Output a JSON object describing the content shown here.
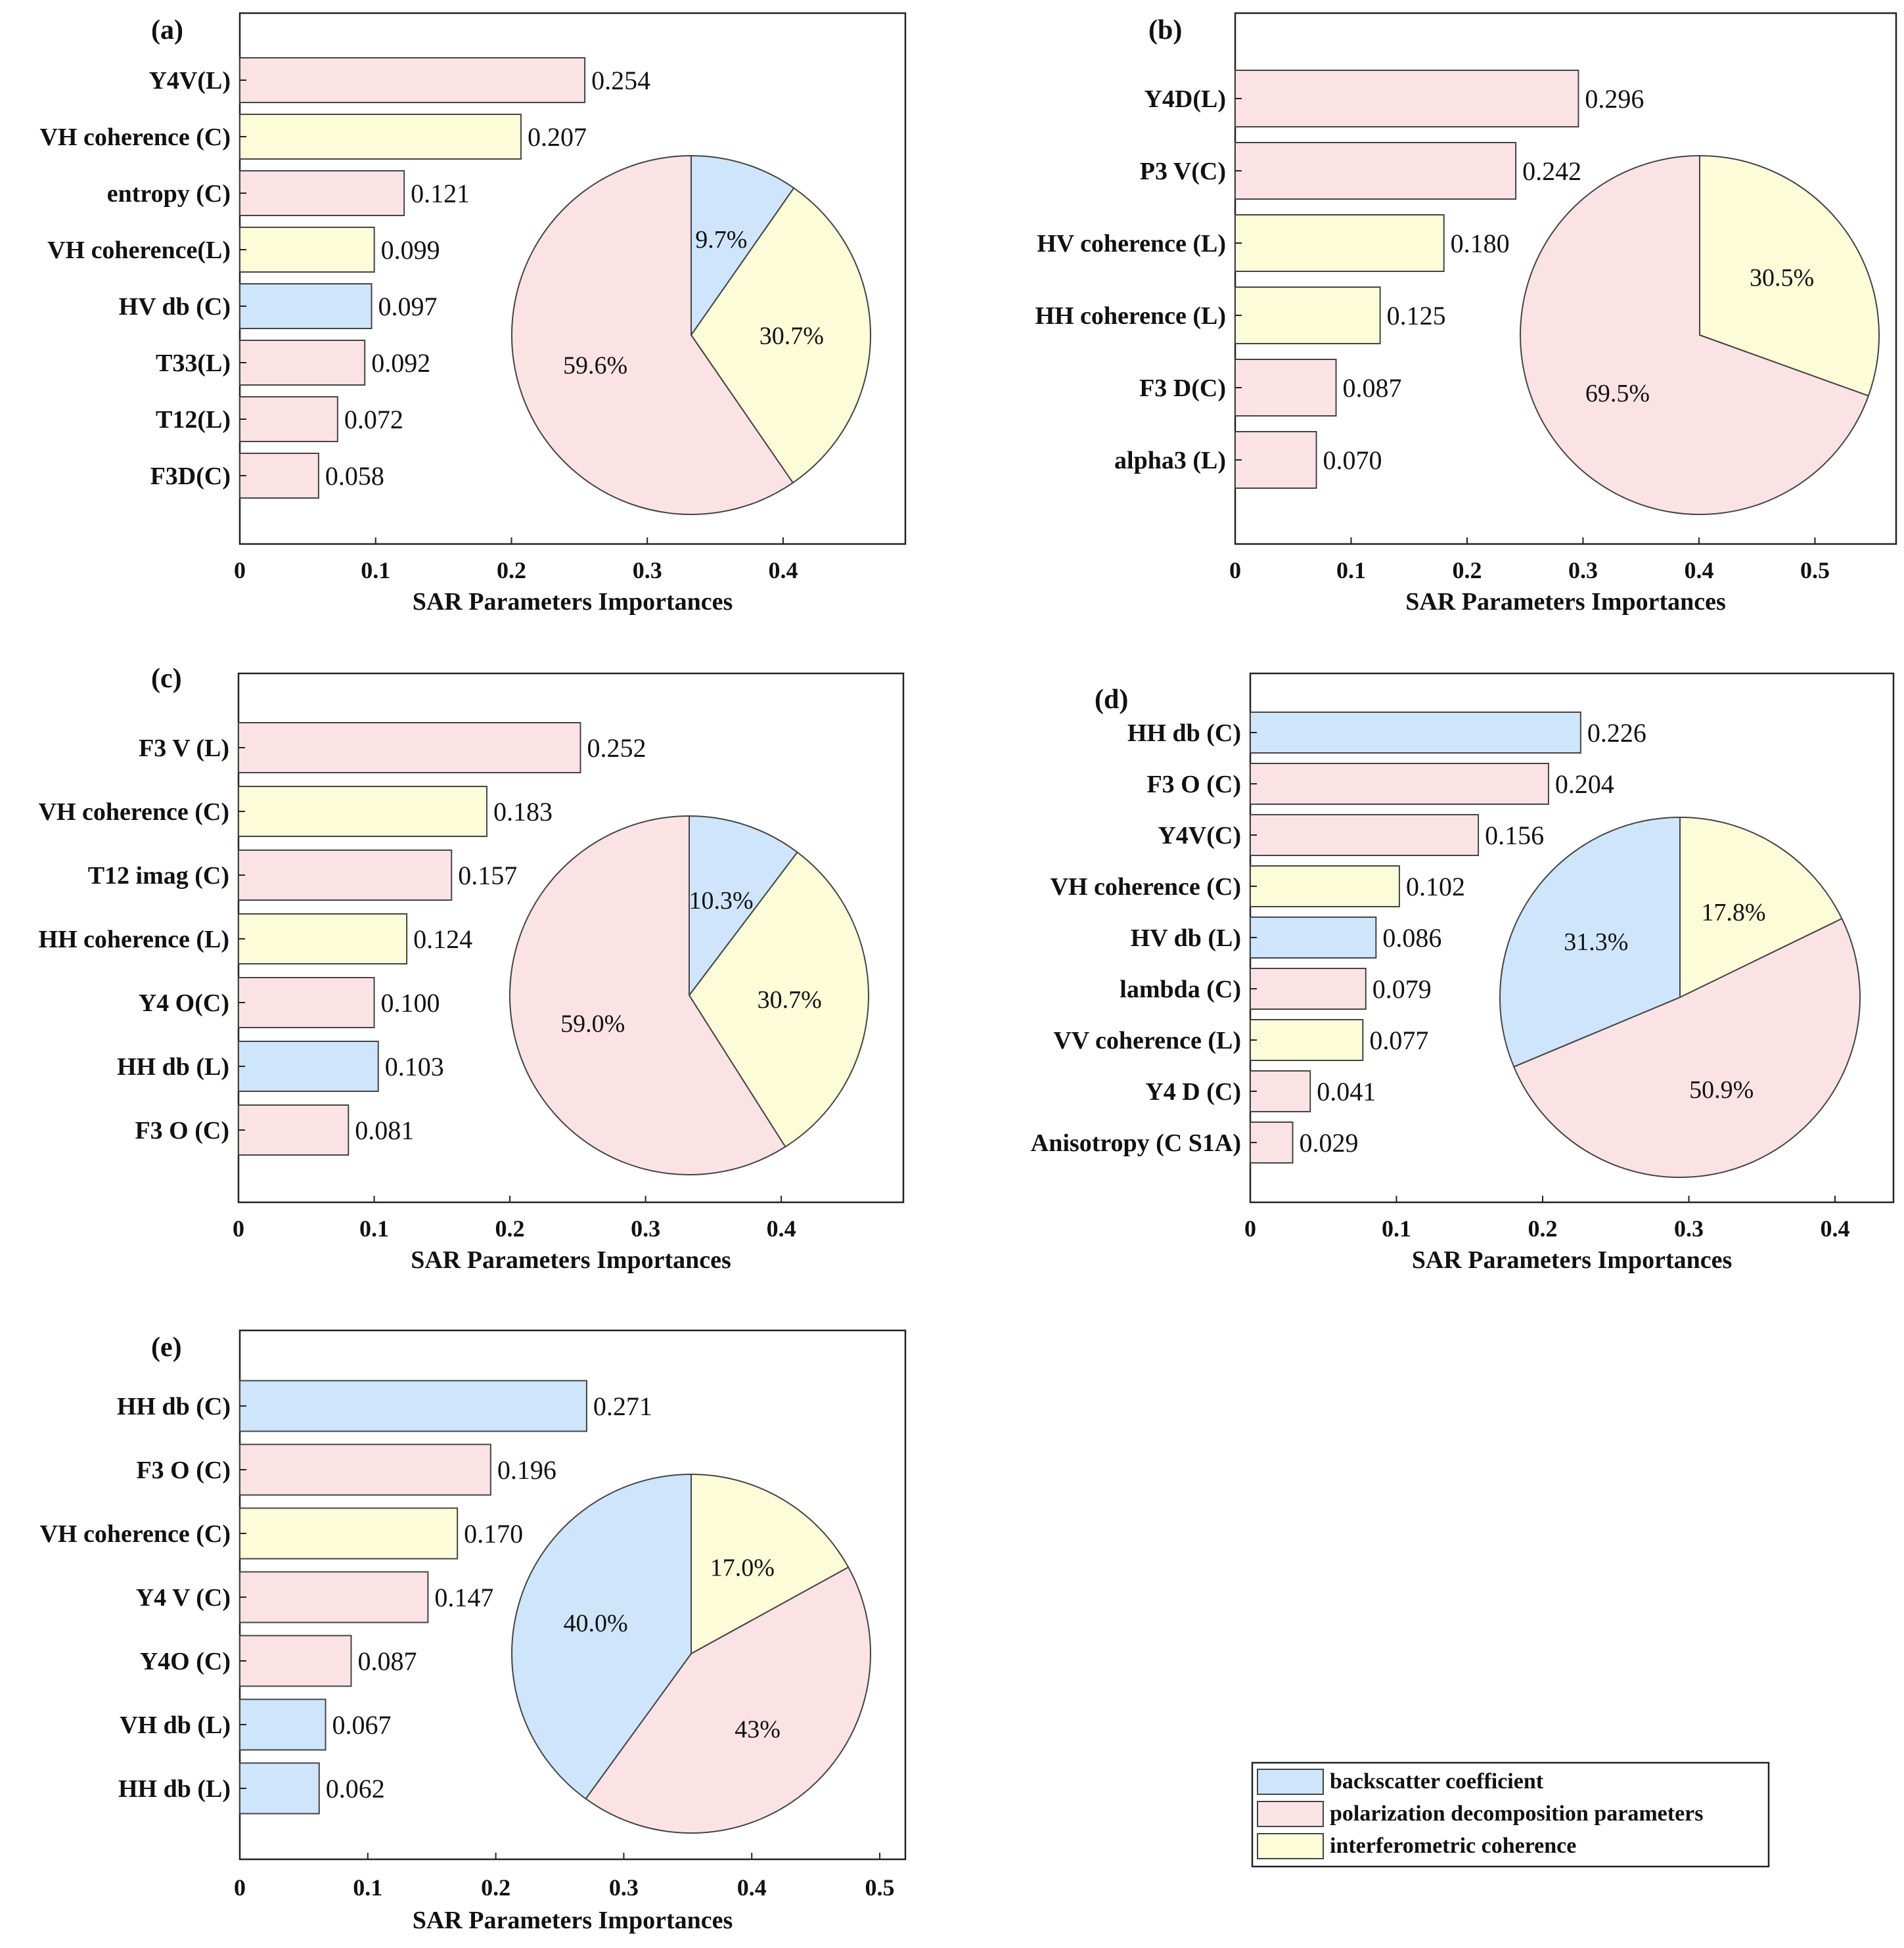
{
  "colors": {
    "backscatter coefficient": "#cfe5fb",
    "polarization decomposition parameters": "#fbe3e5",
    "interferometric coherence": "#fcfcd9",
    "stroke": "#444444"
  },
  "legend": {
    "items": [
      {
        "label": "backscatter coefficient",
        "color": "#cfe5fb"
      },
      {
        "label": "polarization decomposition parameters",
        "color": "#fbe3e5"
      },
      {
        "label": "interferometric coherence",
        "color": "#fcfcd9"
      }
    ]
  },
  "chart_data": [
    {
      "panel": "(a)",
      "type": "bar",
      "orientation": "horizontal",
      "xlabel": "SAR Parameters Importances",
      "xlim": [
        0,
        0.49
      ],
      "xticks": [
        0,
        0.1,
        0.2,
        0.3,
        0.4
      ],
      "xtick_labels": [
        "0",
        "0.1",
        "0.2",
        "0.3",
        "0.4"
      ],
      "bars": [
        {
          "label": "Y4V(L)",
          "value": 0.254,
          "value_label": "0.254",
          "group": "polarization decomposition parameters"
        },
        {
          "label": "VH coherence (C)",
          "value": 0.207,
          "value_label": "0.207",
          "group": "interferometric coherence"
        },
        {
          "label": "entropy (C)",
          "value": 0.121,
          "value_label": "0.121",
          "group": "polarization decomposition parameters"
        },
        {
          "label": "VH  coherence(L)",
          "value": 0.099,
          "value_label": "0.099",
          "group": "interferometric coherence"
        },
        {
          "label": "HV db (C)",
          "value": 0.097,
          "value_label": "0.097",
          "group": "backscatter coefficient"
        },
        {
          "label": "T33(L)",
          "value": 0.092,
          "value_label": "0.092",
          "group": "polarization decomposition parameters"
        },
        {
          "label": "T12(L)",
          "value": 0.072,
          "value_label": "0.072",
          "group": "polarization decomposition parameters"
        },
        {
          "label": "F3D(C)",
          "value": 0.058,
          "value_label": "0.058",
          "group": "polarization decomposition parameters"
        }
      ],
      "pie": [
        {
          "label": "9.7%",
          "value": 9.7,
          "group": "backscatter coefficient"
        },
        {
          "label": "30.7%",
          "value": 30.7,
          "group": "interferometric coherence"
        },
        {
          "label": "59.6%",
          "value": 59.6,
          "group": "polarization decomposition parameters"
        }
      ]
    },
    {
      "panel": "(b)",
      "type": "bar",
      "orientation": "horizontal",
      "xlabel": "SAR Parameters Importances",
      "xlim": [
        0,
        0.57
      ],
      "xticks": [
        0,
        0.1,
        0.2,
        0.3,
        0.4,
        0.5
      ],
      "xtick_labels": [
        "0",
        "0.1",
        "0.2",
        "0.3",
        "0.4",
        "0.5"
      ],
      "bars": [
        {
          "label": "Y4D(L)",
          "value": 0.296,
          "value_label": "0.296",
          "group": "polarization decomposition parameters"
        },
        {
          "label": "P3 V(C)",
          "value": 0.242,
          "value_label": "0.242",
          "group": "polarization decomposition parameters"
        },
        {
          "label": "HV  coherence (L)",
          "value": 0.18,
          "value_label": "0.180",
          "group": "interferometric coherence"
        },
        {
          "label": "HH coherence (L)",
          "value": 0.125,
          "value_label": "0.125",
          "group": "interferometric coherence"
        },
        {
          "label": "F3 D(C)",
          "value": 0.087,
          "value_label": "0.087",
          "group": "polarization decomposition parameters"
        },
        {
          "label": "alpha3 (L)",
          "value": 0.07,
          "value_label": "0.070",
          "group": "polarization decomposition parameters"
        }
      ],
      "pie": [
        {
          "label": "30.5%",
          "value": 30.5,
          "group": "interferometric coherence"
        },
        {
          "label": "69.5%",
          "value": 69.5,
          "group": "polarization decomposition parameters"
        }
      ]
    },
    {
      "panel": "(c)",
      "type": "bar",
      "orientation": "horizontal",
      "xlabel": "SAR Parameters Importances",
      "xlim": [
        0,
        0.49
      ],
      "xticks": [
        0,
        0.1,
        0.2,
        0.3,
        0.4
      ],
      "xtick_labels": [
        "0",
        "0.1",
        "0.2",
        "0.3",
        "0.4"
      ],
      "bars": [
        {
          "label": "F3 V (L)",
          "value": 0.252,
          "value_label": "0.252",
          "group": "polarization decomposition parameters"
        },
        {
          "label": "VH coherence (C)",
          "value": 0.183,
          "value_label": "0.183",
          "group": "interferometric coherence"
        },
        {
          "label": "T12 imag (C)",
          "value": 0.157,
          "value_label": "0.157",
          "group": "polarization decomposition parameters"
        },
        {
          "label": "HH coherence (L)",
          "value": 0.124,
          "value_label": "0.124",
          "group": "interferometric coherence"
        },
        {
          "label": "Y4 O(C)",
          "value": 0.1,
          "value_label": "0.100",
          "group": "polarization decomposition parameters"
        },
        {
          "label": "HH db (L)",
          "value": 0.103,
          "value_label": "0.103",
          "group": "backscatter coefficient"
        },
        {
          "label": "F3 O (C)",
          "value": 0.081,
          "value_label": "0.081",
          "group": "polarization decomposition parameters"
        }
      ],
      "pie": [
        {
          "label": "10.3%",
          "value": 10.3,
          "group": "backscatter coefficient"
        },
        {
          "label": "30.7%",
          "value": 30.7,
          "group": "interferometric coherence"
        },
        {
          "label": "59.0%",
          "value": 59.0,
          "group": "polarization decomposition parameters"
        }
      ]
    },
    {
      "panel": "(d)",
      "type": "bar",
      "orientation": "horizontal",
      "xlabel": "SAR Parameters Importances",
      "xlim": [
        0,
        0.44
      ],
      "xticks": [
        0,
        0.1,
        0.2,
        0.3,
        0.4
      ],
      "xtick_labels": [
        "0",
        "0.1",
        "0.2",
        "0.3",
        "0.4"
      ],
      "bars": [
        {
          "label": "HH db (C)",
          "value": 0.226,
          "value_label": "0.226",
          "group": "backscatter coefficient"
        },
        {
          "label": "F3 O (C)",
          "value": 0.204,
          "value_label": "0.204",
          "group": "polarization decomposition parameters"
        },
        {
          "label": "Y4V(C)",
          "value": 0.156,
          "value_label": "0.156",
          "group": "polarization decomposition parameters"
        },
        {
          "label": "VH  coherence (C)",
          "value": 0.102,
          "value_label": "0.102",
          "group": "interferometric coherence"
        },
        {
          "label": "HV db (L)",
          "value": 0.086,
          "value_label": "0.086",
          "group": "backscatter coefficient"
        },
        {
          "label": "lambda (C)",
          "value": 0.079,
          "value_label": "0.079",
          "group": "polarization decomposition parameters"
        },
        {
          "label": "VV coherence (L)",
          "value": 0.077,
          "value_label": "0.077",
          "group": "interferometric coherence"
        },
        {
          "label": "Y4 D (C)",
          "value": 0.041,
          "value_label": "0.041",
          "group": "polarization decomposition parameters"
        },
        {
          "label": "Anisotropy (C S1A)",
          "value": 0.029,
          "value_label": "0.029",
          "group": "polarization decomposition parameters"
        }
      ],
      "pie": [
        {
          "label": "17.8%",
          "value": 17.8,
          "group": "interferometric coherence"
        },
        {
          "label": "50.9%",
          "value": 50.9,
          "group": "polarization decomposition parameters"
        },
        {
          "label": "31.3%",
          "value": 31.3,
          "group": "backscatter coefficient"
        }
      ]
    },
    {
      "panel": "(e)",
      "type": "bar",
      "orientation": "horizontal",
      "xlabel": "SAR Parameters Importances",
      "xlim": [
        0,
        0.52
      ],
      "xticks": [
        0,
        0.1,
        0.2,
        0.3,
        0.4,
        0.5
      ],
      "xtick_labels": [
        "0",
        "0.1",
        "0.2",
        "0.3",
        "0.4",
        "0.5"
      ],
      "bars": [
        {
          "label": "HH db (C)",
          "value": 0.271,
          "value_label": "0.271",
          "group": "backscatter coefficient"
        },
        {
          "label": "F3 O (C)",
          "value": 0.196,
          "value_label": "0.196",
          "group": "polarization decomposition parameters"
        },
        {
          "label": "VH coherence (C)",
          "value": 0.17,
          "value_label": "0.170",
          "group": "interferometric coherence"
        },
        {
          "label": "Y4 V (C)",
          "value": 0.147,
          "value_label": "0.147",
          "group": "polarization decomposition parameters"
        },
        {
          "label": "Y4O (C)",
          "value": 0.087,
          "value_label": "0.087",
          "group": "polarization decomposition parameters"
        },
        {
          "label": "VH db (L)",
          "value": 0.067,
          "value_label": "0.067",
          "group": "backscatter coefficient"
        },
        {
          "label": "HH db (L)",
          "value": 0.062,
          "value_label": "0.062",
          "group": "backscatter coefficient"
        }
      ],
      "pie": [
        {
          "label": "17.0%",
          "value": 17.0,
          "group": "interferometric coherence"
        },
        {
          "label": "43%",
          "value": 43.0,
          "group": "polarization decomposition parameters"
        },
        {
          "label": "40.0%",
          "value": 40.0,
          "group": "backscatter coefficient"
        }
      ]
    }
  ]
}
